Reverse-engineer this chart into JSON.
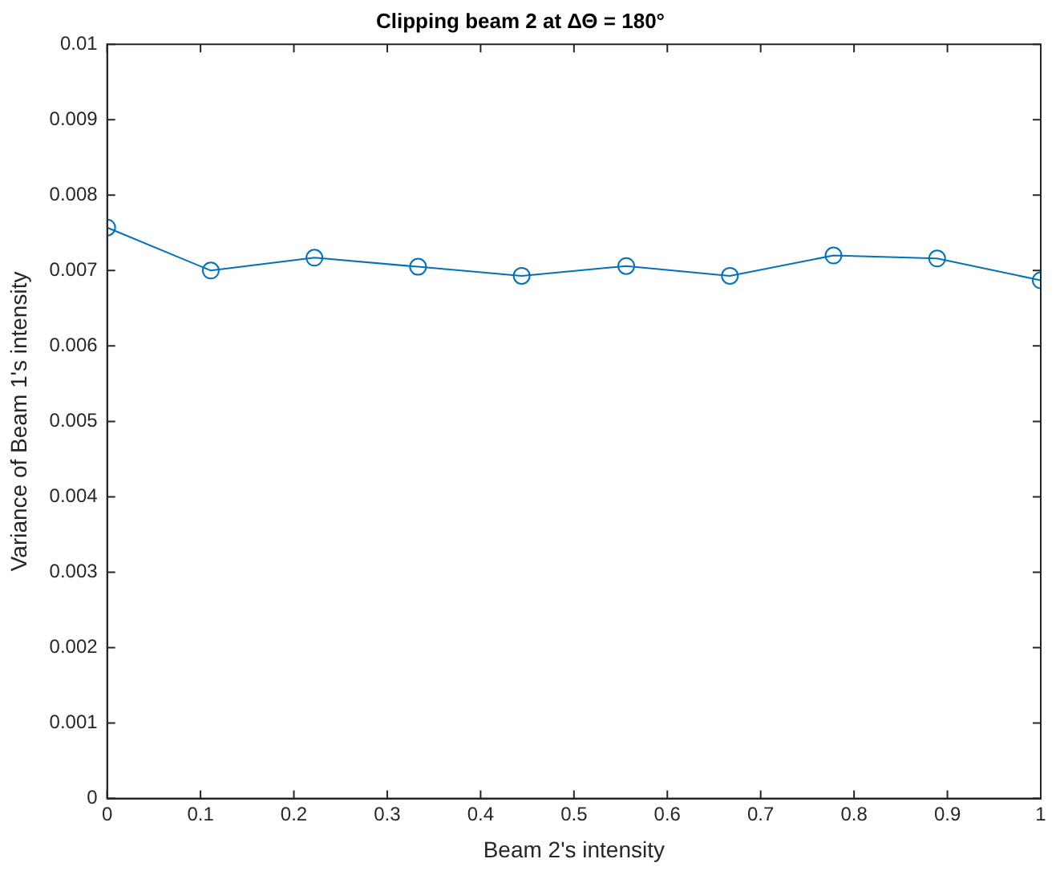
{
  "chart_data": {
    "type": "line",
    "title": "Clipping beam 2 at ΔΘ = 180°",
    "xlabel": "Beam 2's intensity",
    "ylabel": "Variance of Beam 1's intensity",
    "x": [
      0,
      0.111,
      0.222,
      0.333,
      0.444,
      0.556,
      0.667,
      0.778,
      0.889,
      1
    ],
    "series": [
      {
        "color": "#0072bd",
        "values": [
          0.00757,
          0.007,
          0.00717,
          0.00705,
          0.00693,
          0.00706,
          0.00693,
          0.0072,
          0.00716,
          0.00687
        ]
      }
    ],
    "xlim": [
      0,
      1
    ],
    "xticks": [
      0,
      0.1,
      0.2,
      0.3,
      0.4,
      0.5,
      0.6,
      0.7,
      0.8,
      0.9,
      1
    ],
    "ylim": [
      0,
      0.01
    ],
    "yticks": [
      0,
      0.001,
      0.002,
      0.003,
      0.004,
      0.005,
      0.006,
      0.007,
      0.008,
      0.009,
      0.01
    ],
    "grid": false,
    "legend": false,
    "marker": "circle",
    "line_style": "solid"
  }
}
